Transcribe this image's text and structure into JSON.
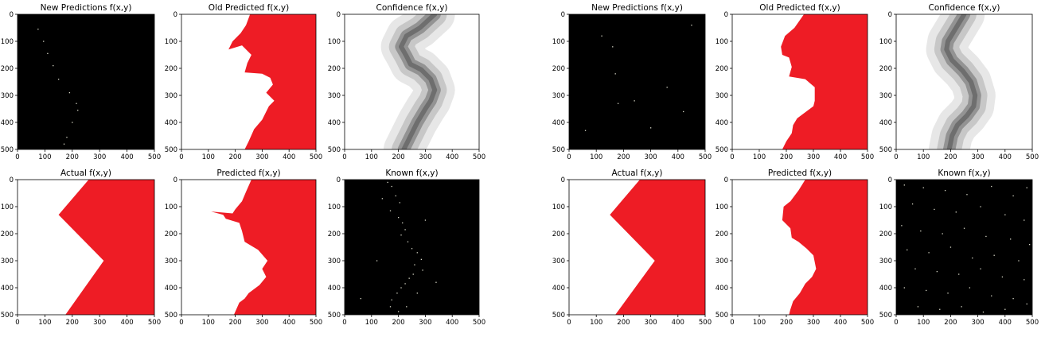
{
  "colors": {
    "red": "#ee1c25",
    "black": "#000000",
    "white": "#ffffff",
    "confidence_light": "#e6e6e6",
    "confidence_mid": "#c3c3c3",
    "confidence_dark": "#8a8a8a"
  },
  "chart_data": [
    {
      "type": "heatmap",
      "figure": "left",
      "title": "New Predictions f(x,y)",
      "xlim": [
        0,
        500
      ],
      "ylim": [
        500,
        0
      ],
      "xticks": [
        "0",
        "100",
        "200",
        "300",
        "400",
        "500"
      ],
      "yticks": [
        "0",
        "100",
        "200",
        "300",
        "400",
        "500"
      ],
      "fill": "black_with_sparse_points",
      "points": [
        [
          75,
          55
        ],
        [
          95,
          100
        ],
        [
          110,
          145
        ],
        [
          130,
          190
        ],
        [
          150,
          240
        ],
        [
          190,
          290
        ],
        [
          215,
          330
        ],
        [
          220,
          355
        ],
        [
          200,
          400
        ],
        [
          180,
          455
        ],
        [
          170,
          480
        ]
      ]
    },
    {
      "type": "heatmap",
      "figure": "left",
      "title": "Old Predicted f(x,y)",
      "xlim": [
        0,
        500
      ],
      "ylim": [
        500,
        0
      ],
      "xticks": [
        "0",
        "100",
        "200",
        "300",
        "400",
        "500"
      ],
      "yticks": [
        "0",
        "100",
        "200",
        "300",
        "400",
        "500"
      ],
      "fill": "red_region_right_of_boundary",
      "boundary": [
        [
          255,
          0
        ],
        [
          240,
          40
        ],
        [
          220,
          70
        ],
        [
          190,
          100
        ],
        [
          175,
          130
        ],
        [
          225,
          115
        ],
        [
          260,
          150
        ],
        [
          245,
          180
        ],
        [
          235,
          215
        ],
        [
          300,
          220
        ],
        [
          330,
          235
        ],
        [
          340,
          260
        ],
        [
          315,
          290
        ],
        [
          345,
          320
        ],
        [
          325,
          340
        ],
        [
          300,
          390
        ],
        [
          270,
          425
        ],
        [
          250,
          470
        ],
        [
          235,
          500
        ]
      ]
    },
    {
      "type": "heatmap",
      "figure": "left",
      "title": "Confidence f(x,y)",
      "xlim": [
        0,
        500
      ],
      "ylim": [
        500,
        0
      ],
      "xticks": [
        "0",
        "100",
        "200",
        "300",
        "400",
        "500"
      ],
      "yticks": [
        "0",
        "100",
        "200",
        "300",
        "400",
        "500"
      ],
      "fill": "grayscale_band",
      "center": [
        [
          335,
          0
        ],
        [
          280,
          50
        ],
        [
          230,
          80
        ],
        [
          210,
          120
        ],
        [
          230,
          155
        ],
        [
          245,
          185
        ],
        [
          285,
          205
        ],
        [
          320,
          240
        ],
        [
          335,
          280
        ],
        [
          320,
          320
        ],
        [
          300,
          350
        ],
        [
          270,
          400
        ],
        [
          240,
          460
        ],
        [
          220,
          500
        ]
      ]
    },
    {
      "type": "heatmap",
      "figure": "left",
      "title": "Actual f(x,y)",
      "xlim": [
        0,
        500
      ],
      "ylim": [
        500,
        0
      ],
      "xticks": [
        "0",
        "100",
        "200",
        "300",
        "400",
        "500"
      ],
      "yticks": [
        "0",
        "100",
        "200",
        "300",
        "400",
        "500"
      ],
      "fill": "red_region_right_of_boundary",
      "boundary": [
        [
          260,
          0
        ],
        [
          150,
          130
        ],
        [
          315,
          300
        ],
        [
          175,
          500
        ]
      ]
    },
    {
      "type": "heatmap",
      "figure": "left",
      "title": "Predicted f(x,y)",
      "xlim": [
        0,
        500
      ],
      "ylim": [
        500,
        0
      ],
      "xticks": [
        "0",
        "100",
        "200",
        "300",
        "400",
        "500"
      ],
      "yticks": [
        "0",
        "100",
        "200",
        "300",
        "400",
        "500"
      ],
      "fill": "red_region_right_of_boundary",
      "boundary": [
        [
          260,
          0
        ],
        [
          240,
          45
        ],
        [
          225,
          80
        ],
        [
          200,
          110
        ],
        [
          190,
          125
        ],
        [
          110,
          118
        ],
        [
          155,
          130
        ],
        [
          165,
          145
        ],
        [
          215,
          160
        ],
        [
          225,
          190
        ],
        [
          235,
          230
        ],
        [
          285,
          260
        ],
        [
          320,
          300
        ],
        [
          300,
          330
        ],
        [
          315,
          360
        ],
        [
          290,
          390
        ],
        [
          250,
          420
        ],
        [
          235,
          440
        ],
        [
          215,
          455
        ],
        [
          195,
          500
        ]
      ]
    },
    {
      "type": "heatmap",
      "figure": "left",
      "title": "Known f(x,y)",
      "xlim": [
        0,
        500
      ],
      "ylim": [
        500,
        0
      ],
      "xticks": [
        "0",
        "100",
        "200",
        "300",
        "400",
        "500"
      ],
      "yticks": [
        "0",
        "100",
        "200",
        "300",
        "400",
        "500"
      ],
      "fill": "black_with_sparse_points",
      "points": [
        [
          160,
          10
        ],
        [
          175,
          25
        ],
        [
          190,
          60
        ],
        [
          205,
          85
        ],
        [
          170,
          115
        ],
        [
          200,
          140
        ],
        [
          215,
          160
        ],
        [
          225,
          185
        ],
        [
          210,
          205
        ],
        [
          235,
          230
        ],
        [
          250,
          255
        ],
        [
          270,
          270
        ],
        [
          285,
          295
        ],
        [
          260,
          315
        ],
        [
          290,
          335
        ],
        [
          255,
          350
        ],
        [
          240,
          365
        ],
        [
          225,
          385
        ],
        [
          210,
          400
        ],
        [
          195,
          420
        ],
        [
          175,
          445
        ],
        [
          170,
          470
        ],
        [
          200,
          488
        ],
        [
          60,
          440
        ],
        [
          120,
          300
        ],
        [
          270,
          420
        ],
        [
          340,
          380
        ],
        [
          300,
          150
        ],
        [
          140,
          70
        ],
        [
          230,
          470
        ]
      ]
    },
    {
      "type": "heatmap",
      "figure": "right",
      "title": "New Predictions f(x,y)",
      "xlim": [
        0,
        500
      ],
      "ylim": [
        500,
        0
      ],
      "xticks": [
        "0",
        "100",
        "200",
        "300",
        "400",
        "500"
      ],
      "yticks": [
        "0",
        "100",
        "200",
        "300",
        "400",
        "500"
      ],
      "fill": "black_with_sparse_points",
      "points": [
        [
          120,
          80
        ],
        [
          160,
          120
        ],
        [
          170,
          220
        ],
        [
          240,
          320
        ],
        [
          180,
          330
        ],
        [
          360,
          270
        ],
        [
          420,
          360
        ],
        [
          300,
          420
        ],
        [
          60,
          430
        ],
        [
          450,
          40
        ]
      ]
    },
    {
      "type": "heatmap",
      "figure": "right",
      "title": "Old Predicted f(x,y)",
      "xlim": [
        0,
        500
      ],
      "ylim": [
        500,
        0
      ],
      "xticks": [
        "0",
        "100",
        "200",
        "300",
        "400",
        "500"
      ],
      "yticks": [
        "0",
        "100",
        "200",
        "300",
        "400",
        "500"
      ],
      "fill": "red_region_right_of_boundary",
      "boundary": [
        [
          265,
          0
        ],
        [
          230,
          50
        ],
        [
          195,
          80
        ],
        [
          180,
          120
        ],
        [
          185,
          150
        ],
        [
          210,
          160
        ],
        [
          220,
          195
        ],
        [
          210,
          230
        ],
        [
          270,
          240
        ],
        [
          305,
          270
        ],
        [
          305,
          320
        ],
        [
          300,
          340
        ],
        [
          240,
          385
        ],
        [
          225,
          410
        ],
        [
          220,
          440
        ],
        [
          200,
          470
        ],
        [
          185,
          500
        ]
      ]
    },
    {
      "type": "heatmap",
      "figure": "right",
      "title": "Confidence f(x,y)",
      "xlim": [
        0,
        500
      ],
      "ylim": [
        500,
        0
      ],
      "xticks": [
        "0",
        "100",
        "200",
        "300",
        "400",
        "500"
      ],
      "yticks": [
        "0",
        "100",
        "200",
        "300",
        "400",
        "500"
      ],
      "fill": "grayscale_band",
      "center": [
        [
          250,
          0
        ],
        [
          220,
          50
        ],
        [
          190,
          100
        ],
        [
          185,
          130
        ],
        [
          205,
          170
        ],
        [
          245,
          210
        ],
        [
          275,
          250
        ],
        [
          290,
          300
        ],
        [
          285,
          340
        ],
        [
          260,
          375
        ],
        [
          225,
          410
        ],
        [
          205,
          450
        ],
        [
          195,
          500
        ]
      ]
    },
    {
      "type": "heatmap",
      "figure": "right",
      "title": "Actual f(x,y)",
      "xlim": [
        0,
        500
      ],
      "ylim": [
        500,
        0
      ],
      "xticks": [
        "0",
        "100",
        "200",
        "300",
        "400",
        "500"
      ],
      "yticks": [
        "0",
        "100",
        "200",
        "300",
        "400",
        "500"
      ],
      "fill": "red_region_right_of_boundary",
      "boundary": [
        [
          260,
          0
        ],
        [
          150,
          130
        ],
        [
          315,
          300
        ],
        [
          170,
          500
        ]
      ]
    },
    {
      "type": "heatmap",
      "figure": "right",
      "title": "Predicted f(x,y)",
      "xlim": [
        0,
        500
      ],
      "ylim": [
        500,
        0
      ],
      "xticks": [
        "0",
        "100",
        "200",
        "300",
        "400",
        "500"
      ],
      "yticks": [
        "0",
        "100",
        "200",
        "300",
        "400",
        "500"
      ],
      "fill": "red_region_right_of_boundary",
      "boundary": [
        [
          270,
          0
        ],
        [
          245,
          40
        ],
        [
          215,
          80
        ],
        [
          190,
          100
        ],
        [
          185,
          150
        ],
        [
          215,
          180
        ],
        [
          220,
          215
        ],
        [
          245,
          230
        ],
        [
          275,
          255
        ],
        [
          300,
          280
        ],
        [
          310,
          330
        ],
        [
          295,
          360
        ],
        [
          270,
          385
        ],
        [
          250,
          420
        ],
        [
          225,
          450
        ],
        [
          215,
          480
        ],
        [
          210,
          500
        ]
      ]
    },
    {
      "type": "heatmap",
      "figure": "right",
      "title": "Known f(x,y)",
      "xlim": [
        0,
        500
      ],
      "ylim": [
        500,
        0
      ],
      "xticks": [
        "0",
        "100",
        "200",
        "300",
        "400",
        "500"
      ],
      "yticks": [
        "0",
        "100",
        "200",
        "300",
        "400",
        "500"
      ],
      "fill": "black_with_sparse_points",
      "points": [
        [
          30,
          20
        ],
        [
          100,
          30
        ],
        [
          180,
          40
        ],
        [
          260,
          55
        ],
        [
          350,
          25
        ],
        [
          430,
          60
        ],
        [
          480,
          30
        ],
        [
          60,
          90
        ],
        [
          140,
          110
        ],
        [
          220,
          120
        ],
        [
          310,
          100
        ],
        [
          400,
          130
        ],
        [
          470,
          150
        ],
        [
          20,
          170
        ],
        [
          90,
          190
        ],
        [
          170,
          200
        ],
        [
          250,
          180
        ],
        [
          330,
          210
        ],
        [
          420,
          220
        ],
        [
          490,
          240
        ],
        [
          40,
          260
        ],
        [
          120,
          270
        ],
        [
          200,
          250
        ],
        [
          280,
          290
        ],
        [
          360,
          280
        ],
        [
          450,
          300
        ],
        [
          70,
          330
        ],
        [
          150,
          340
        ],
        [
          230,
          350
        ],
        [
          310,
          330
        ],
        [
          390,
          360
        ],
        [
          470,
          370
        ],
        [
          30,
          400
        ],
        [
          110,
          410
        ],
        [
          190,
          420
        ],
        [
          270,
          400
        ],
        [
          350,
          430
        ],
        [
          430,
          440
        ],
        [
          80,
          470
        ],
        [
          160,
          480
        ],
        [
          240,
          470
        ],
        [
          320,
          490
        ],
        [
          400,
          480
        ],
        [
          480,
          460
        ]
      ]
    }
  ]
}
